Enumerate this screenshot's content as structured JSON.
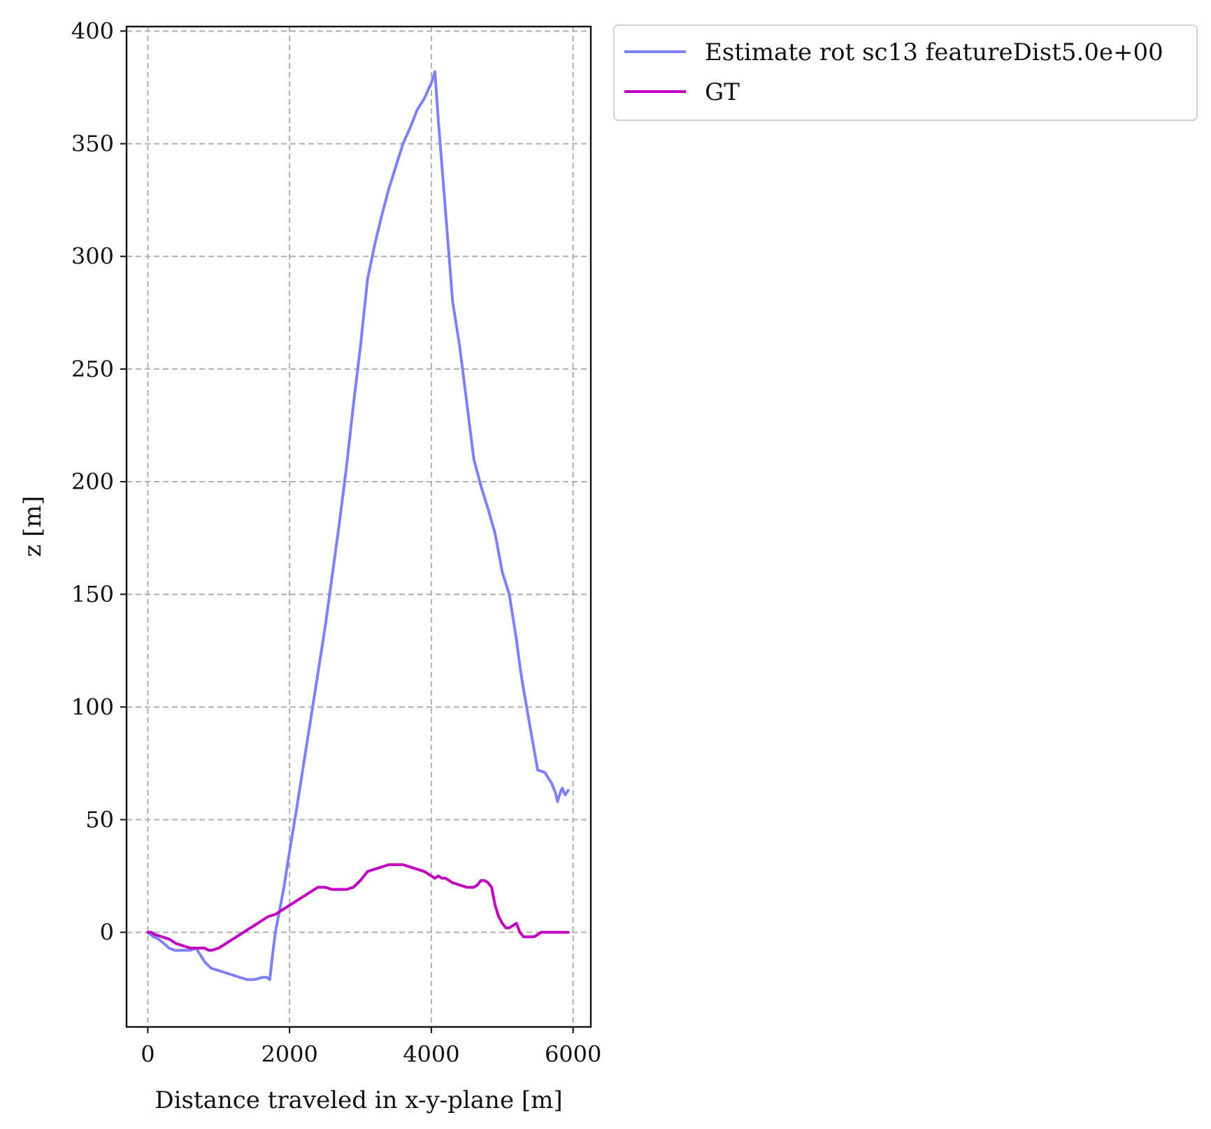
{
  "chart_data": {
    "type": "line",
    "xlabel": "Distance traveled in x-y-plane [m]",
    "ylabel": "z [m]",
    "xlim": [
      -300,
      6250
    ],
    "ylim": [
      -42,
      402
    ],
    "x_ticks": [
      0,
      2000,
      4000,
      6000
    ],
    "y_ticks": [
      0,
      50,
      100,
      150,
      200,
      250,
      300,
      350,
      400
    ],
    "grid": true,
    "legend_position": "outside-top-right",
    "series": [
      {
        "name": "Estimate rot sc13 featureDist5.0e+00",
        "color": "#8080f5",
        "x": [
          0,
          80,
          150,
          230,
          300,
          380,
          450,
          520,
          600,
          680,
          740,
          800,
          860,
          900,
          1000,
          1100,
          1200,
          1300,
          1400,
          1450,
          1500,
          1560,
          1620,
          1680,
          1720,
          1760,
          1800,
          1860,
          1920,
          2000,
          2100,
          2200,
          2300,
          2400,
          2500,
          2600,
          2700,
          2800,
          2900,
          3000,
          3100,
          3200,
          3300,
          3400,
          3500,
          3600,
          3700,
          3800,
          3900,
          4000,
          4050,
          4100,
          4150,
          4200,
          4250,
          4300,
          4400,
          4500,
          4600,
          4700,
          4800,
          4900,
          5000,
          5100,
          5200,
          5250,
          5300,
          5400,
          5500,
          5600,
          5700,
          5750,
          5780,
          5800,
          5830,
          5850,
          5870,
          5890,
          5910,
          5930
        ],
        "y": [
          0,
          -2,
          -3,
          -5,
          -7,
          -8,
          -8,
          -8,
          -8,
          -7,
          -10,
          -13,
          -15,
          -16,
          -17,
          -18,
          -19,
          -20,
          -21,
          -21,
          -21,
          -20.5,
          -20,
          -20,
          -21,
          -10,
          0,
          10,
          20,
          36,
          55,
          75,
          95,
          115,
          135,
          158,
          181,
          206,
          234,
          260,
          290,
          305,
          318,
          330,
          340,
          350,
          357,
          365,
          370,
          377,
          382,
          360,
          340,
          320,
          300,
          280,
          260,
          235,
          210,
          198,
          188,
          177,
          160,
          150,
          130,
          118,
          108,
          90,
          72,
          71,
          66,
          62,
          58,
          60,
          63,
          64,
          62,
          61,
          62,
          63
        ]
      },
      {
        "name": "GT",
        "color": "#bf00bf",
        "x": [
          0,
          50,
          100,
          200,
          300,
          400,
          500,
          600,
          700,
          800,
          860,
          900,
          1000,
          1100,
          1200,
          1300,
          1400,
          1500,
          1600,
          1700,
          1800,
          1900,
          2000,
          2100,
          2200,
          2300,
          2400,
          2500,
          2600,
          2700,
          2800,
          2900,
          3000,
          3100,
          3200,
          3300,
          3400,
          3500,
          3600,
          3700,
          3800,
          3900,
          4000,
          4050,
          4100,
          4150,
          4200,
          4300,
          4400,
          4500,
          4600,
          4650,
          4700,
          4750,
          4800,
          4850,
          4900,
          4950,
          5000,
          5050,
          5100,
          5150,
          5200,
          5250,
          5300,
          5350,
          5400,
          5450,
          5500,
          5550,
          5600,
          5650,
          5700,
          5750,
          5800,
          5850,
          5900,
          5930
        ],
        "y": [
          0,
          0,
          -1,
          -2,
          -3,
          -5,
          -6,
          -7,
          -7,
          -7,
          -8,
          -8,
          -7,
          -5,
          -3,
          -1,
          1,
          3,
          5,
          7,
          8,
          10,
          12,
          14,
          16,
          18,
          20,
          20,
          19,
          19,
          19,
          20,
          23,
          27,
          28,
          29,
          30,
          30,
          30,
          29,
          28,
          27,
          25,
          24,
          25,
          24,
          24,
          22,
          21,
          20,
          20,
          21,
          23,
          23,
          22,
          20,
          12,
          7,
          4,
          2,
          2,
          3,
          4,
          0,
          -2,
          -2,
          -2,
          -2,
          -1,
          0,
          0,
          0,
          0,
          0,
          0,
          0,
          0,
          0
        ]
      }
    ]
  }
}
